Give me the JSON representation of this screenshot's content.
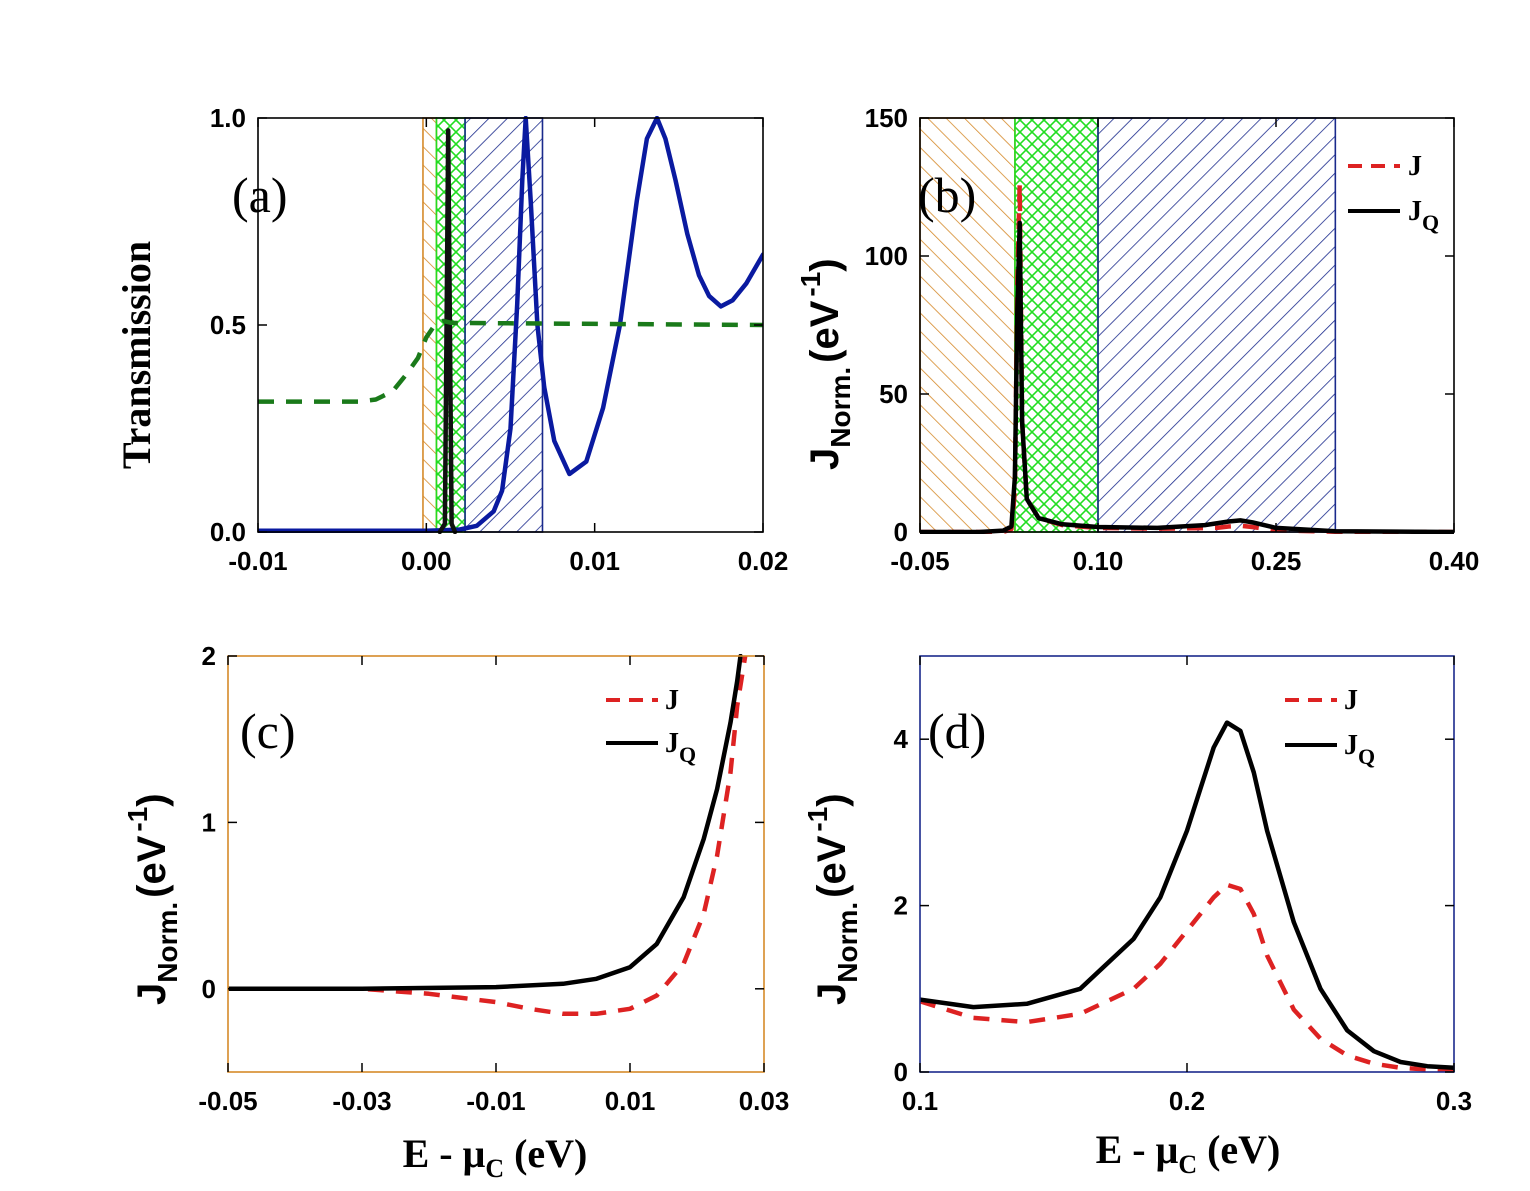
{
  "chart_data": [
    {
      "type": "line",
      "panel_label": "(a)",
      "ylabel": "Transmission",
      "xlabel": "",
      "xlim": [
        -0.01,
        0.02
      ],
      "ylim": [
        0,
        1
      ],
      "xticks": [
        "-0.01",
        "0.00",
        "0.01",
        "0.02"
      ],
      "yticks": [
        "0.0",
        "0.5",
        "1.0"
      ],
      "frame_color": "#000000",
      "regions": [
        {
          "name": "orange-hatch",
          "x": [
            -0.0002,
            0.0006
          ],
          "color": "#d58a2a"
        },
        {
          "name": "green-crosshatch",
          "x": [
            0.0006,
            0.0023
          ],
          "color": "#22dd22"
        },
        {
          "name": "blue-hatch",
          "x": [
            0.0023,
            0.0069
          ],
          "color": "#1a2a8c"
        }
      ],
      "series": [
        {
          "name": "transmission",
          "color": "#0a1aa0",
          "style": "solid",
          "x": [
            -0.01,
            0.0,
            0.001,
            0.002,
            0.003,
            0.004,
            0.0045,
            0.005,
            0.0054,
            0.0057,
            0.0059,
            0.0062,
            0.0066,
            0.007,
            0.0076,
            0.0085,
            0.0095,
            0.0105,
            0.0115,
            0.0125,
            0.0131,
            0.0137,
            0.0142,
            0.0148,
            0.0155,
            0.0162,
            0.0168,
            0.0175,
            0.0182,
            0.019,
            0.02
          ],
          "y": [
            0.003,
            0.003,
            0.004,
            0.006,
            0.015,
            0.05,
            0.1,
            0.25,
            0.55,
            0.85,
            1.0,
            0.8,
            0.5,
            0.35,
            0.22,
            0.14,
            0.17,
            0.3,
            0.5,
            0.8,
            0.95,
            1.0,
            0.95,
            0.85,
            0.72,
            0.62,
            0.57,
            0.545,
            0.56,
            0.6,
            0.67
          ]
        },
        {
          "name": "sharp-peak",
          "color": "#111111",
          "style": "solid",
          "x": [
            0.0008,
            0.0011,
            0.0013,
            0.0015,
            0.0017
          ],
          "y": [
            0.0,
            0.02,
            0.97,
            0.02,
            0.0
          ]
        },
        {
          "name": "reference",
          "color": "#1a7a1a",
          "style": "dashed",
          "x": [
            -0.01,
            -0.004,
            -0.003,
            -0.002,
            -0.0012,
            -0.0005,
            0.0,
            0.0005,
            0.001,
            0.0015,
            0.02
          ],
          "y": [
            0.315,
            0.315,
            0.32,
            0.34,
            0.38,
            0.42,
            0.47,
            0.5,
            0.51,
            0.505,
            0.5
          ]
        }
      ]
    },
    {
      "type": "line",
      "panel_label": "(b)",
      "ylabel": "J",
      "ylabel_sub": "Norm.",
      "ylabel_unit": "(eV",
      "ylabel_sup": "-1",
      "ylabel_close": ")",
      "xlabel": "",
      "xlim": [
        -0.05,
        0.4
      ],
      "ylim": [
        0,
        150
      ],
      "xticks": [
        "-0.05",
        "0.10",
        "0.25",
        "0.40"
      ],
      "yticks": [
        "0",
        "50",
        "100",
        "150"
      ],
      "frame_color": "#000000",
      "legend": [
        {
          "label": "J",
          "sub": "",
          "color": "#dd2222",
          "style": "dashed"
        },
        {
          "label": "J",
          "sub": "Q",
          "color": "#000000",
          "style": "solid"
        }
      ],
      "regions": [
        {
          "name": "orange-hatch",
          "x": [
            -0.05,
            0.03
          ],
          "color": "#d58a2a"
        },
        {
          "name": "green-crosshatch",
          "x": [
            0.03,
            0.1
          ],
          "color": "#22dd22"
        },
        {
          "name": "blue-hatch",
          "x": [
            0.1,
            0.3
          ],
          "color": "#1a2a8c"
        }
      ],
      "series": [
        {
          "name": "J",
          "color": "#dd2222",
          "style": "dashed",
          "x": [
            -0.05,
            0.0,
            0.02,
            0.027,
            0.03,
            0.032,
            0.034,
            0.036,
            0.04,
            0.05,
            0.07,
            0.1,
            0.15,
            0.2,
            0.21,
            0.22,
            0.23,
            0.25,
            0.3,
            0.4
          ],
          "y": [
            0,
            0,
            0,
            1,
            15,
            90,
            126,
            40,
            12,
            5,
            2.5,
            1.5,
            1.2,
            1.5,
            2.0,
            2.3,
            1.8,
            0.6,
            0.1,
            0.0
          ]
        },
        {
          "name": "JQ",
          "color": "#000000",
          "style": "solid",
          "x": [
            -0.05,
            0.0,
            0.02,
            0.027,
            0.03,
            0.032,
            0.034,
            0.036,
            0.04,
            0.05,
            0.07,
            0.1,
            0.15,
            0.19,
            0.21,
            0.22,
            0.23,
            0.25,
            0.3,
            0.4
          ],
          "y": [
            0,
            0,
            0.5,
            2,
            20,
            80,
            112,
            40,
            12,
            5,
            2.8,
            1.8,
            1.5,
            2.5,
            3.8,
            4.2,
            3.5,
            1.5,
            0.3,
            0.0
          ]
        }
      ]
    },
    {
      "type": "line",
      "panel_label": "(c)",
      "ylabel": "J",
      "ylabel_sub": "Norm.",
      "ylabel_unit": "(eV",
      "ylabel_sup": "-1",
      "ylabel_close": ")",
      "xlabel": "E - μ",
      "xlabel_sub": "C",
      "xlabel_unit": " (eV)",
      "xlim": [
        -0.05,
        0.03
      ],
      "ylim": [
        -0.5,
        2
      ],
      "xticks": [
        "-0.05",
        "-0.03",
        "-0.01",
        "0.01",
        "0.03"
      ],
      "yticks": [
        "0",
        "1",
        "2"
      ],
      "frame_color": "#d58a2a",
      "legend": [
        {
          "label": "J",
          "sub": "",
          "color": "#dd2222",
          "style": "dashed"
        },
        {
          "label": "J",
          "sub": "Q",
          "color": "#000000",
          "style": "solid"
        }
      ],
      "series": [
        {
          "name": "J",
          "color": "#dd2222",
          "style": "dashed",
          "x": [
            -0.05,
            -0.03,
            -0.02,
            -0.01,
            -0.005,
            0.0,
            0.005,
            0.01,
            0.014,
            0.018,
            0.021,
            0.023,
            0.025,
            0.026,
            0.0272
          ],
          "y": [
            0,
            0,
            -0.03,
            -0.08,
            -0.12,
            -0.15,
            -0.15,
            -0.12,
            -0.04,
            0.15,
            0.45,
            0.8,
            1.3,
            1.7,
            2.0
          ]
        },
        {
          "name": "JQ",
          "color": "#000000",
          "style": "solid",
          "x": [
            -0.05,
            -0.03,
            -0.01,
            0.0,
            0.005,
            0.01,
            0.014,
            0.018,
            0.021,
            0.023,
            0.025,
            0.026,
            0.0265
          ],
          "y": [
            0,
            0,
            0.01,
            0.03,
            0.06,
            0.13,
            0.27,
            0.55,
            0.9,
            1.2,
            1.6,
            1.85,
            2.0
          ]
        }
      ]
    },
    {
      "type": "line",
      "panel_label": "(d)",
      "ylabel": "J",
      "ylabel_sub": "Norm.",
      "ylabel_unit": "(eV",
      "ylabel_sup": "-1",
      "ylabel_close": ")",
      "xlabel": "E - μ",
      "xlabel_sub": "C",
      "xlabel_unit": " (eV)",
      "xlim": [
        0.1,
        0.3
      ],
      "ylim": [
        0,
        5
      ],
      "xticks": [
        "0.1",
        "0.2",
        "0.3"
      ],
      "yticks": [
        "0",
        "2",
        "4"
      ],
      "frame_color": "#1a2a8c",
      "legend": [
        {
          "label": "J",
          "sub": "",
          "color": "#dd2222",
          "style": "dashed"
        },
        {
          "label": "J",
          "sub": "Q",
          "color": "#000000",
          "style": "solid"
        }
      ],
      "series": [
        {
          "name": "J",
          "color": "#dd2222",
          "style": "dashed",
          "x": [
            0.1,
            0.12,
            0.14,
            0.16,
            0.18,
            0.19,
            0.2,
            0.21,
            0.215,
            0.22,
            0.225,
            0.23,
            0.24,
            0.25,
            0.26,
            0.27,
            0.28,
            0.29,
            0.3
          ],
          "y": [
            0.85,
            0.65,
            0.6,
            0.7,
            1.0,
            1.3,
            1.7,
            2.1,
            2.25,
            2.2,
            1.9,
            1.4,
            0.75,
            0.4,
            0.2,
            0.1,
            0.05,
            0.03,
            0.02
          ]
        },
        {
          "name": "JQ",
          "color": "#000000",
          "style": "solid",
          "x": [
            0.1,
            0.12,
            0.14,
            0.16,
            0.18,
            0.19,
            0.2,
            0.205,
            0.21,
            0.215,
            0.22,
            0.225,
            0.23,
            0.24,
            0.25,
            0.26,
            0.27,
            0.28,
            0.29,
            0.3
          ],
          "y": [
            0.87,
            0.78,
            0.82,
            1.0,
            1.6,
            2.1,
            2.9,
            3.4,
            3.9,
            4.2,
            4.1,
            3.6,
            2.9,
            1.8,
            1.0,
            0.5,
            0.25,
            0.12,
            0.07,
            0.05
          ]
        }
      ]
    }
  ]
}
